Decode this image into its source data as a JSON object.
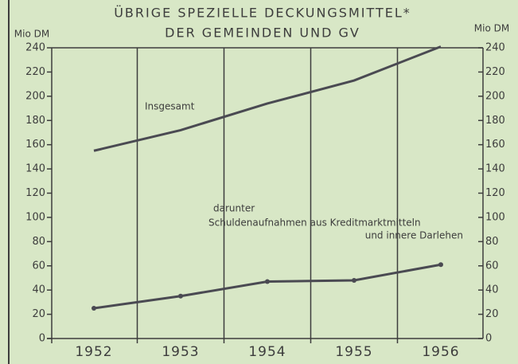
{
  "chart_data": {
    "type": "line",
    "title": [
      "ÜBRIGE SPEZIELLE DECKUNGSMITTEL*",
      "DER GEMEINDEN UND GV"
    ],
    "ylabel": "Mio DM",
    "y2label": "Mio DM",
    "categories": [
      "1952",
      "1953",
      "1954",
      "1955",
      "1956"
    ],
    "series": [
      {
        "name": "Insgesamt",
        "color": "#4a4a52",
        "values": [
          155,
          172,
          194,
          213,
          241
        ]
      },
      {
        "name_lines": [
          "darunter",
          "Schuldenaufnahmen aus Kreditmarktmitteln",
          "und innere Darlehen"
        ],
        "color": "#4a4a52",
        "values": [
          25,
          35,
          47,
          48,
          61
        ],
        "markers": true
      }
    ],
    "ylim": [
      0,
      240
    ],
    "yticks": [
      0,
      20,
      40,
      60,
      80,
      100,
      120,
      140,
      160,
      180,
      200,
      220,
      240
    ],
    "y2lim": [
      0,
      240
    ],
    "y2ticks": [
      0,
      20,
      40,
      60,
      80,
      100,
      120,
      140,
      160,
      180,
      200,
      220,
      240
    ]
  }
}
